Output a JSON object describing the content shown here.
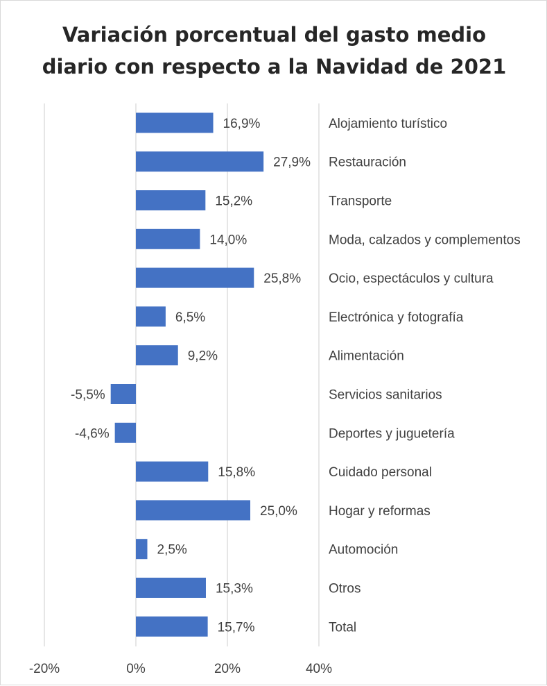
{
  "chart_data": {
    "type": "bar",
    "orientation": "horizontal",
    "title": "Variación porcentual del gasto medio\ndiario con respecto a la Navidad de 2021",
    "categories": [
      "Alojamiento turístico",
      "Restauración",
      "Transporte",
      "Moda, calzados y complementos",
      "Ocio, espectáculos y cultura",
      "Electrónica y fotografía",
      "Alimentación",
      "Servicios sanitarios",
      "Deportes y juguetería",
      "Cuidado personal",
      "Hogar y reformas",
      "Automoción",
      "Otros",
      "Total"
    ],
    "values": [
      16.9,
      27.9,
      15.2,
      14.0,
      25.8,
      6.5,
      9.2,
      -5.5,
      -4.6,
      15.8,
      25.0,
      2.5,
      15.3,
      15.7
    ],
    "data_labels": [
      "16,9%",
      "27,9%",
      "15,2%",
      "14,0%",
      "25,8%",
      "6,5%",
      "9,2%",
      "-5,5%",
      "-4,6%",
      "15,8%",
      "25,0%",
      "2,5%",
      "15,3%",
      "15,7%"
    ],
    "x_ticks": [
      -20,
      0,
      20,
      40
    ],
    "x_tick_labels": [
      "-20%",
      "0%",
      "20%",
      "40%"
    ],
    "xlim": [
      -20,
      40
    ],
    "xlabel": "",
    "ylabel": "",
    "grid": "vertical",
    "legend": "none",
    "bar_color": "#4472C4",
    "grid_color": "#d9d9d9",
    "category_labels_position": "right"
  }
}
